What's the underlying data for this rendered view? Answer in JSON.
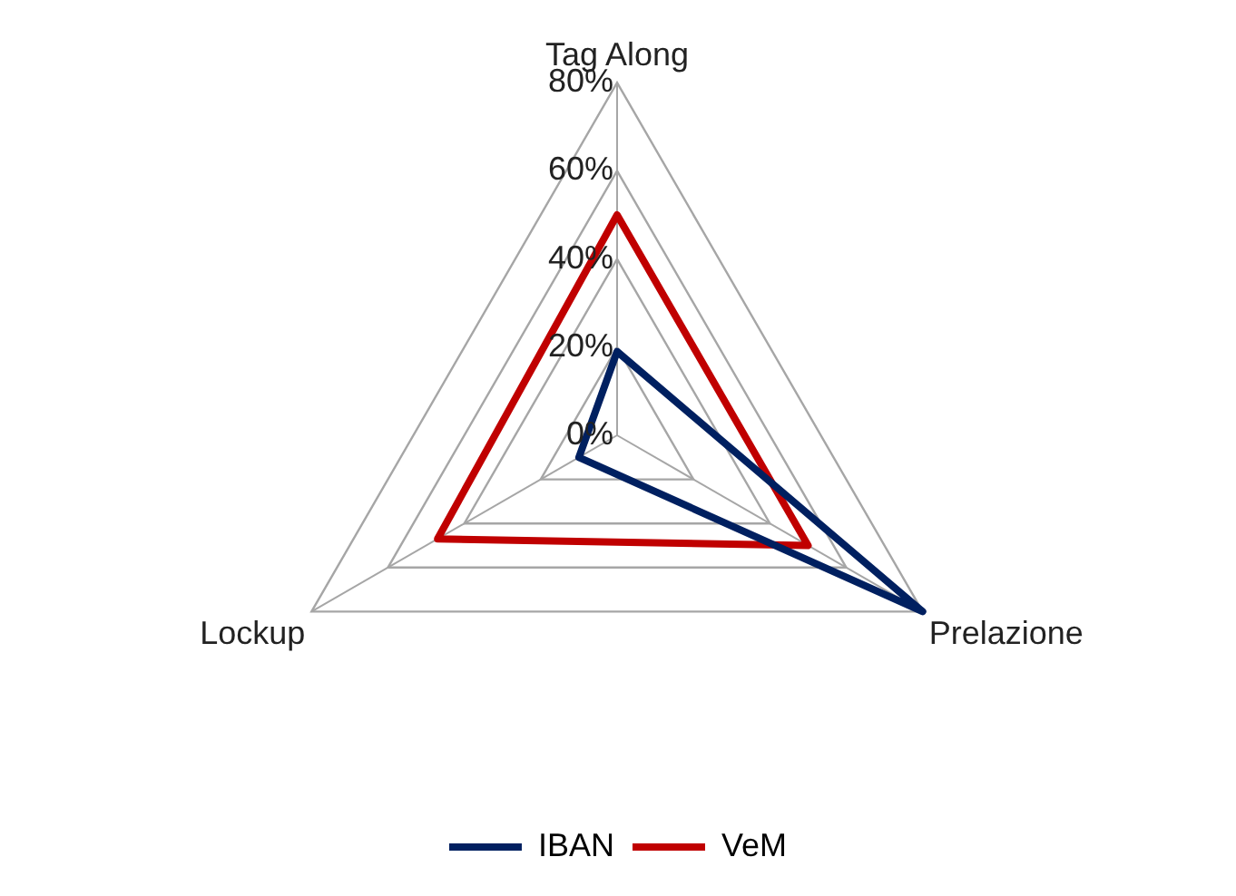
{
  "chart_data": {
    "type": "radar",
    "categories": [
      "Tag Along",
      "Prelazione",
      "Lockup"
    ],
    "series": [
      {
        "name": "IBAN",
        "color": "#002060",
        "values": [
          19,
          80,
          10
        ]
      },
      {
        "name": "VeM",
        "color": "#c00000",
        "values": [
          50,
          50,
          47
        ]
      }
    ],
    "ylim": [
      0,
      80
    ],
    "yticks": [
      {
        "value": 0,
        "label": "0%"
      },
      {
        "value": 20,
        "label": "20%"
      },
      {
        "value": 40,
        "label": "40%"
      },
      {
        "value": 60,
        "label": "60%"
      },
      {
        "value": 80,
        "label": "80%"
      }
    ],
    "grid": true,
    "legend": "bottom",
    "marker": "none",
    "line_style": "solid"
  }
}
